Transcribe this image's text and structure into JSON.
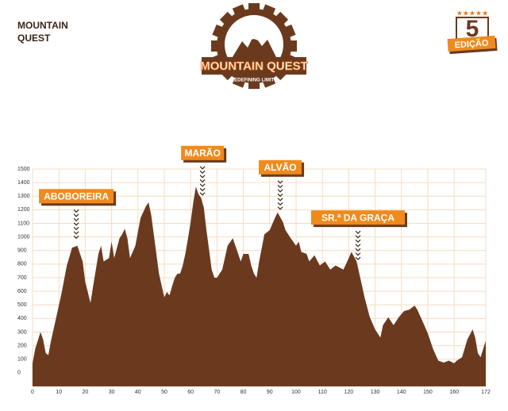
{
  "chart_data": {
    "type": "area",
    "title": "MOUNTAIN QUEST",
    "color": "#6b3a1e",
    "grid_color": "#f6dcc0",
    "xlim": [
      0,
      172
    ],
    "ylim": [
      -100,
      1500
    ],
    "xticks": [
      0,
      10,
      20,
      30,
      40,
      50,
      60,
      70,
      80,
      90,
      100,
      110,
      120,
      130,
      140,
      150,
      160,
      172
    ],
    "yticks": [
      0,
      100,
      200,
      300,
      400,
      500,
      600,
      700,
      800,
      900,
      1000,
      1100,
      1200,
      1300,
      1400,
      1500
    ],
    "grid": true,
    "x": [
      0,
      1,
      3,
      4,
      5,
      6,
      7,
      9,
      11,
      13,
      15,
      17,
      19,
      20,
      22,
      23,
      25,
      26,
      27,
      29,
      30,
      31,
      33,
      34,
      35,
      36,
      37,
      39,
      41,
      43,
      44,
      45,
      47,
      48,
      49,
      50,
      51,
      52,
      53,
      54,
      55,
      56,
      57,
      58,
      59,
      60,
      61,
      62,
      63,
      64,
      65,
      66,
      67,
      68,
      69,
      70,
      72,
      74,
      76,
      77,
      79,
      80,
      82,
      83,
      84,
      85,
      86,
      88,
      90,
      92,
      93,
      95,
      96,
      98,
      100,
      101,
      102,
      104,
      105,
      107,
      109,
      111,
      113,
      115,
      118,
      120,
      121,
      123,
      124,
      126,
      128,
      130,
      132,
      133,
      135,
      137,
      139,
      141,
      143,
      145,
      146,
      148,
      150,
      152,
      154,
      156,
      158,
      160,
      161,
      163,
      165,
      167,
      168,
      169,
      170,
      171,
      172
    ],
    "values": [
      70,
      175,
      300,
      245,
      145,
      130,
      235,
      410,
      585,
      790,
      920,
      935,
      820,
      670,
      515,
      640,
      875,
      935,
      820,
      845,
      965,
      845,
      990,
      1020,
      1060,
      990,
      845,
      935,
      1140,
      1225,
      1255,
      1165,
      875,
      730,
      640,
      555,
      595,
      570,
      640,
      700,
      730,
      730,
      790,
      875,
      990,
      1110,
      1255,
      1370,
      1315,
      1285,
      1215,
      1050,
      905,
      760,
      700,
      700,
      760,
      935,
      990,
      935,
      820,
      875,
      875,
      790,
      730,
      700,
      820,
      1020,
      1050,
      1140,
      1180,
      1110,
      1050,
      990,
      935,
      965,
      890,
      875,
      820,
      865,
      790,
      820,
      760,
      790,
      760,
      845,
      890,
      820,
      730,
      555,
      410,
      320,
      260,
      350,
      410,
      350,
      410,
      455,
      465,
      495,
      465,
      380,
      290,
      175,
      90,
      75,
      90,
      70,
      90,
      115,
      245,
      320,
      260,
      145,
      115,
      175,
      235
    ],
    "annotations": [
      {
        "text": "ABOBOREIRA",
        "x": 16.6
      },
      {
        "text": "MARÃO",
        "x": 64.5
      },
      {
        "text": "ALVÃO",
        "x": 94
      },
      {
        "text": "SR.ª DA GRAÇA",
        "x": 123.5
      }
    ]
  },
  "logo": {
    "name": "MOUNTAIN QUEST",
    "tagline": "REDEFINING LIMITS"
  },
  "badge": {
    "number": "5",
    "label": "EDIÇÃO"
  }
}
